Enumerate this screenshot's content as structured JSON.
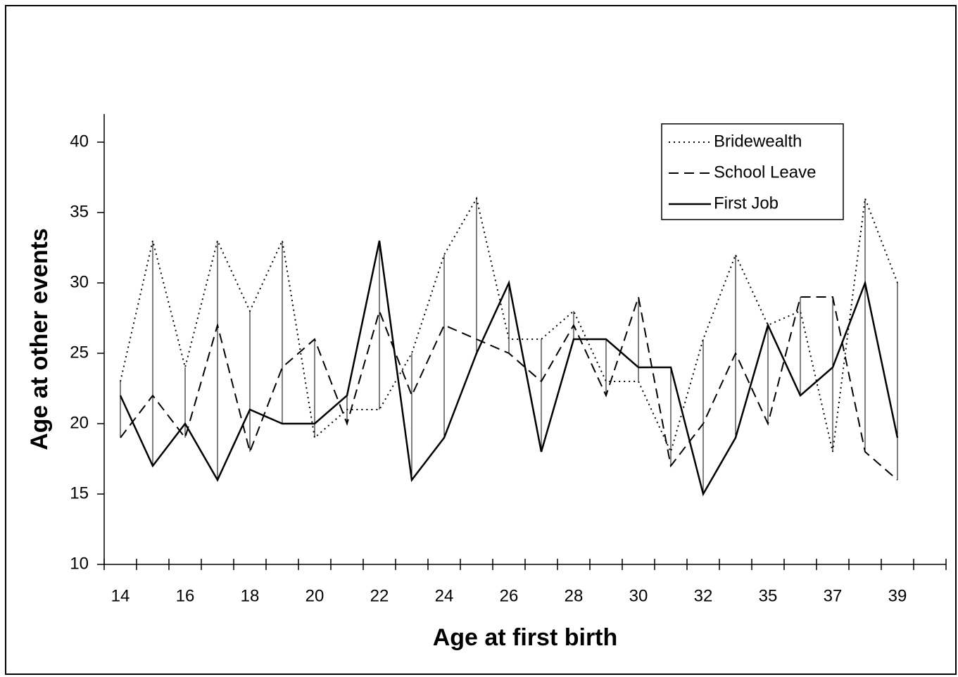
{
  "chart_data": {
    "type": "line",
    "x_label": "Age at first birth",
    "y_label": "Age at other events",
    "categories": [
      "14",
      null,
      "16",
      null,
      "18",
      null,
      "20",
      null,
      "22",
      null,
      "24",
      null,
      "26",
      null,
      "28",
      null,
      "30",
      null,
      "32",
      null,
      "35",
      null,
      "37",
      null,
      "39"
    ],
    "series": [
      {
        "name": "Bridewealth",
        "color": "#000000",
        "style": "dotted",
        "values": [
          23,
          33,
          24,
          33,
          28,
          33,
          19,
          21,
          21,
          25,
          32,
          36,
          26,
          26,
          28,
          23,
          23,
          18,
          26,
          32,
          27,
          28,
          18,
          36,
          30
        ]
      },
      {
        "name": "School Leave",
        "color": "#000000",
        "style": "dashed",
        "values": [
          19,
          22,
          19,
          27,
          18,
          24,
          26,
          20,
          28,
          22,
          27,
          26,
          25,
          23,
          27,
          22,
          29,
          17,
          20,
          25,
          20,
          29,
          29,
          18,
          16
        ]
      },
      {
        "name": "First Job",
        "color": "#000000",
        "style": "solid",
        "values": [
          22,
          17,
          20,
          16,
          21,
          20,
          20,
          22,
          33,
          16,
          19,
          25,
          30,
          18,
          26,
          26,
          24,
          24,
          15,
          19,
          27,
          22,
          24,
          30,
          19
        ]
      }
    ],
    "ylim": [
      10,
      42
    ],
    "yticks": [
      10,
      15,
      20,
      25,
      30,
      35,
      40
    ],
    "range_lines": true,
    "legend": "top-right"
  }
}
